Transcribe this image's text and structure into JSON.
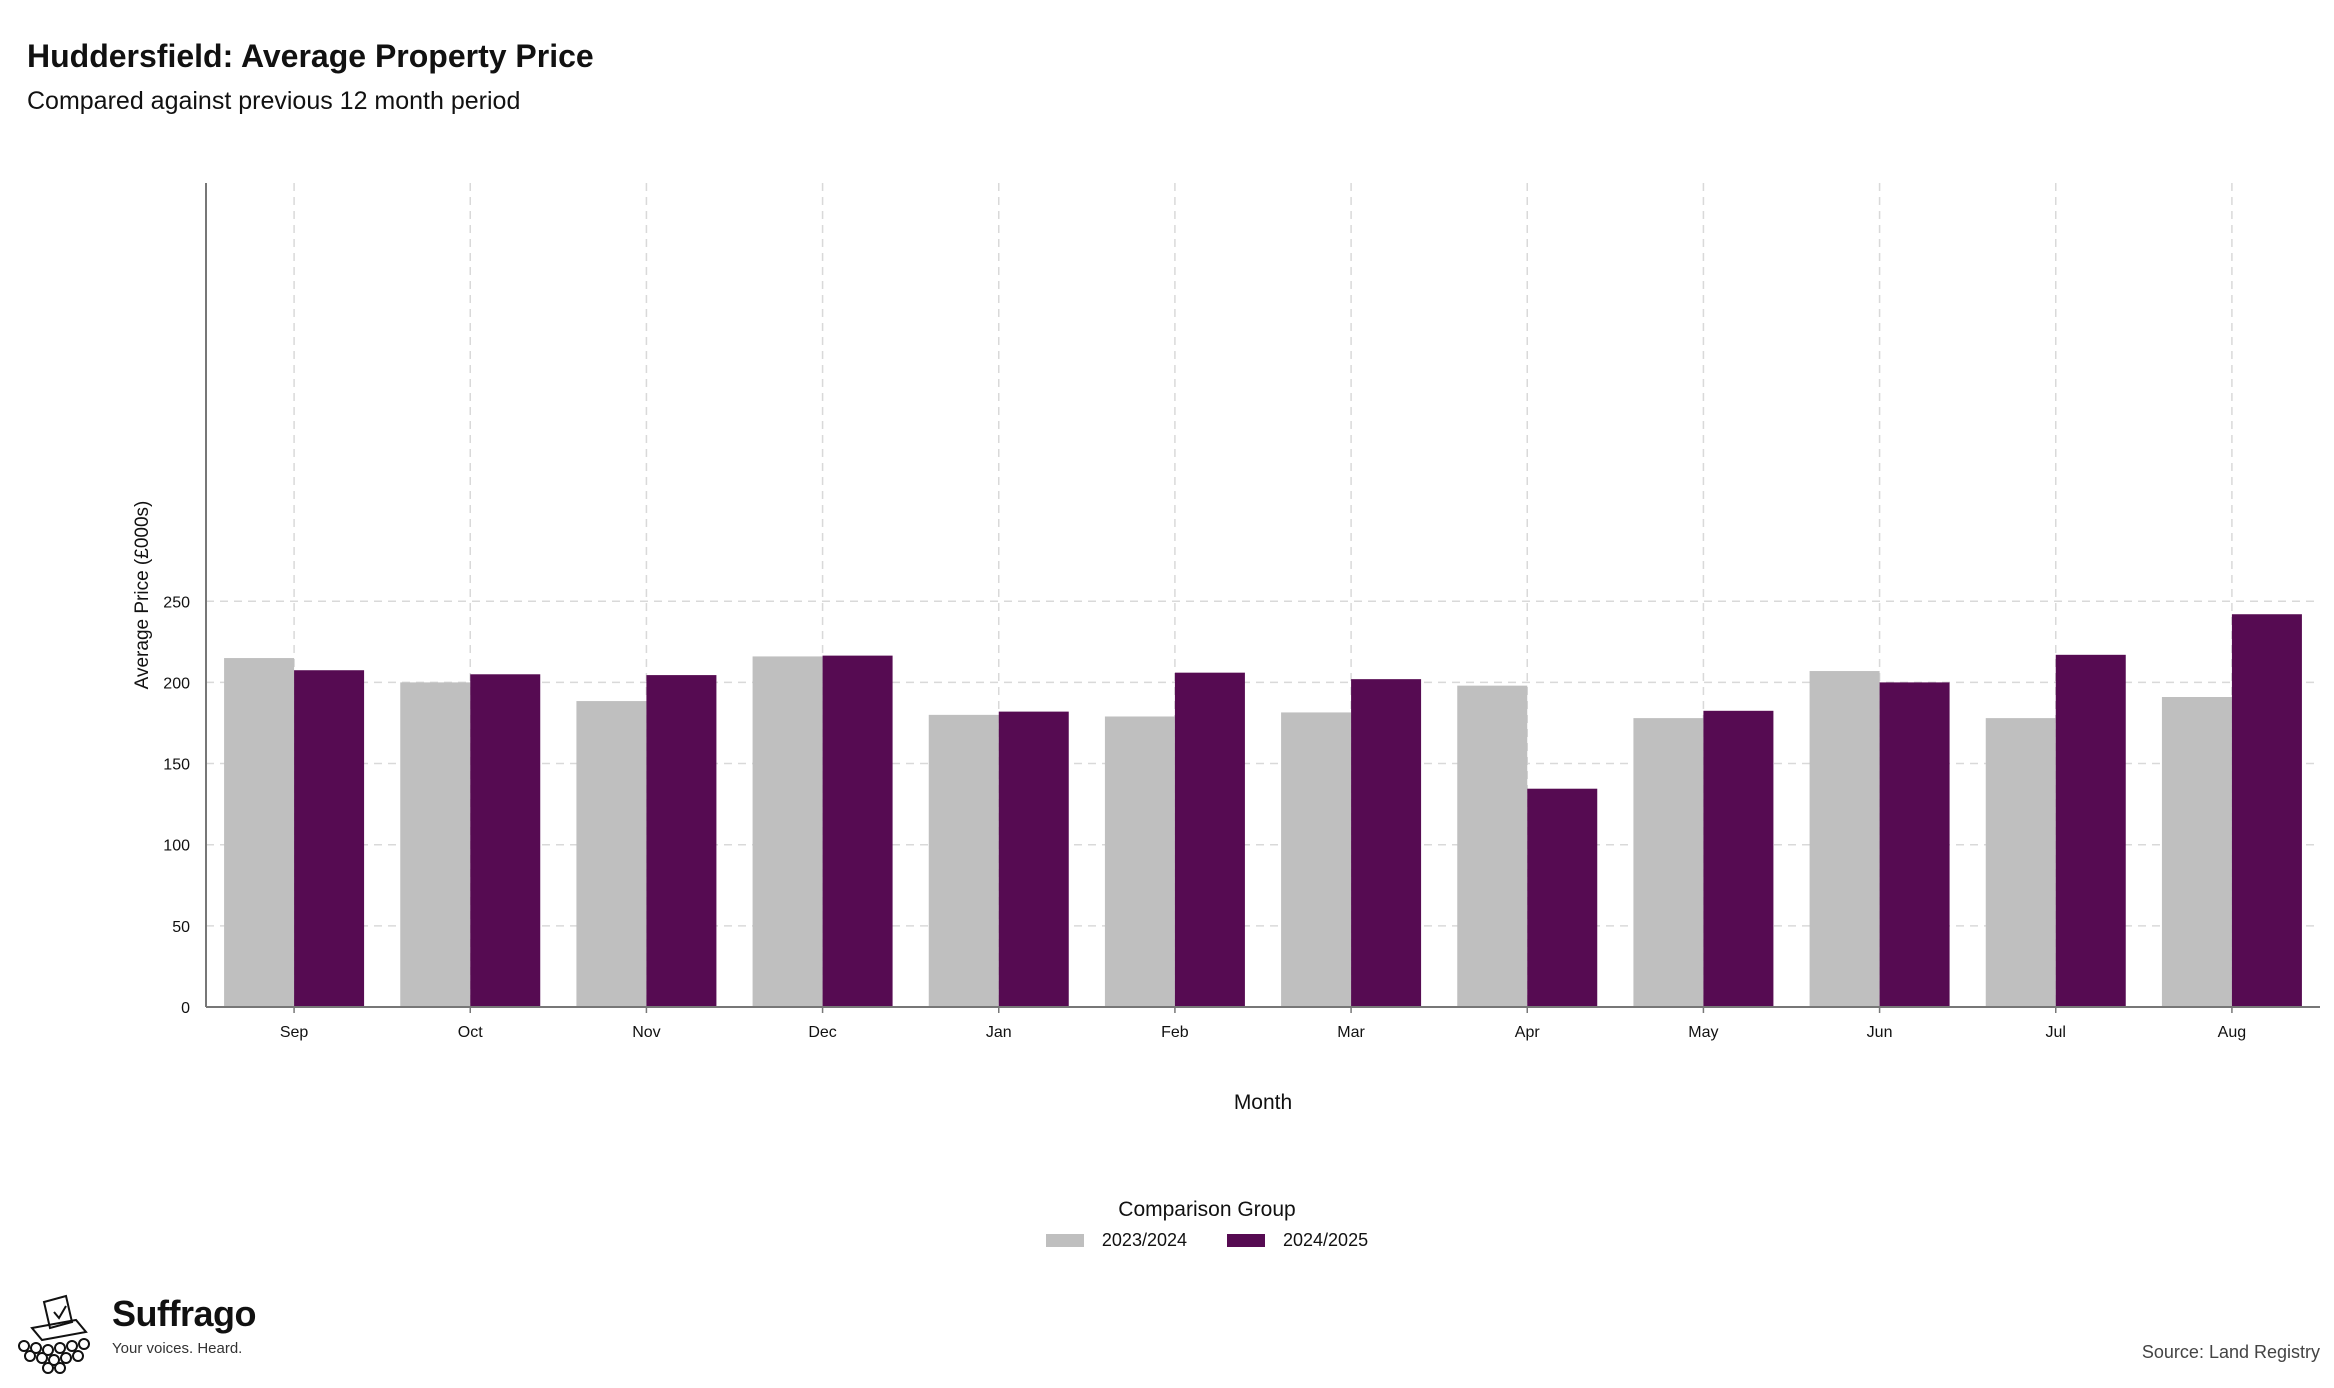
{
  "chart_data": {
    "type": "bar",
    "title": "Huddersfield: Average Property Price",
    "subtitle": "Compared against previous 12 month period",
    "xlabel": "Month",
    "ylabel": "Average Price (£000s)",
    "ylim": [
      0,
      255
    ],
    "yticks": [
      0,
      50,
      100,
      150,
      200,
      250
    ],
    "grid": true,
    "legend_placement": "bottom",
    "legend_title": "Comparison Group",
    "categories": [
      "Sep",
      "Oct",
      "Nov",
      "Dec",
      "Jan",
      "Feb",
      "Mar",
      "Apr",
      "May",
      "Jun",
      "Jul",
      "Aug"
    ],
    "series": [
      {
        "name": "2023/2024",
        "color": "#bfbfbf",
        "values": [
          215,
          200,
          188.5,
          216,
          180,
          179,
          181.5,
          198,
          178,
          207,
          178,
          191
        ]
      },
      {
        "name": "2024/2025",
        "color": "#560b52",
        "values": [
          207.5,
          205,
          204.5,
          216.5,
          182,
          206,
          202,
          134.5,
          182.5,
          200,
          217,
          242
        ]
      }
    ]
  },
  "footer": {
    "brand_name": "Suffrago",
    "brand_tagline": "Your voices. Heard.",
    "source": "Source: Land Registry"
  }
}
